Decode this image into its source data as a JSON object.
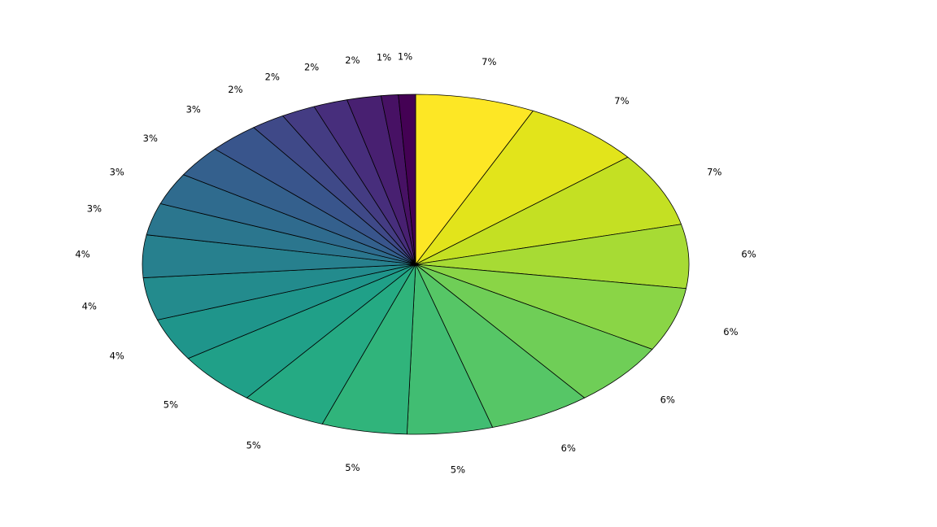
{
  "page": {
    "background_color": "#ffffff"
  },
  "chart_data": {
    "type": "pie",
    "title": "",
    "legend": "none",
    "grid": "off",
    "colormap": "viridis (reversed, yellow first)",
    "start_angle_deg": 90,
    "direction": "clockwise",
    "unit": "percent",
    "labels": [
      "7%",
      "7%",
      "7%",
      "6%",
      "6%",
      "6%",
      "6%",
      "5%",
      "5%",
      "5%",
      "5%",
      "4%",
      "4%",
      "4%",
      "3%",
      "3%",
      "3%",
      "3%",
      "2%",
      "2%",
      "2%",
      "2%",
      "1%",
      "1%"
    ],
    "values": [
      7,
      7,
      7,
      6,
      6,
      6,
      6,
      5,
      5,
      5,
      5,
      4,
      4,
      4,
      3,
      3,
      3,
      3,
      2,
      2,
      2,
      2,
      1,
      1
    ],
    "colors": [
      "#fde725",
      "#e2e41b",
      "#c4e023",
      "#a7db34",
      "#8ad546",
      "#6fce57",
      "#56c666",
      "#41bd72",
      "#30b47b",
      "#25aa83",
      "#20a088",
      "#1f958b",
      "#238b8d",
      "#27808e",
      "#2b768e",
      "#2f6b8e",
      "#34608d",
      "#39558c",
      "#3f4988",
      "#443c83",
      "#472e7c",
      "#482071",
      "#471164",
      "#440154"
    ],
    "edge_color": "#000000",
    "label_color": "#000000",
    "label_distance": 1.22
  }
}
